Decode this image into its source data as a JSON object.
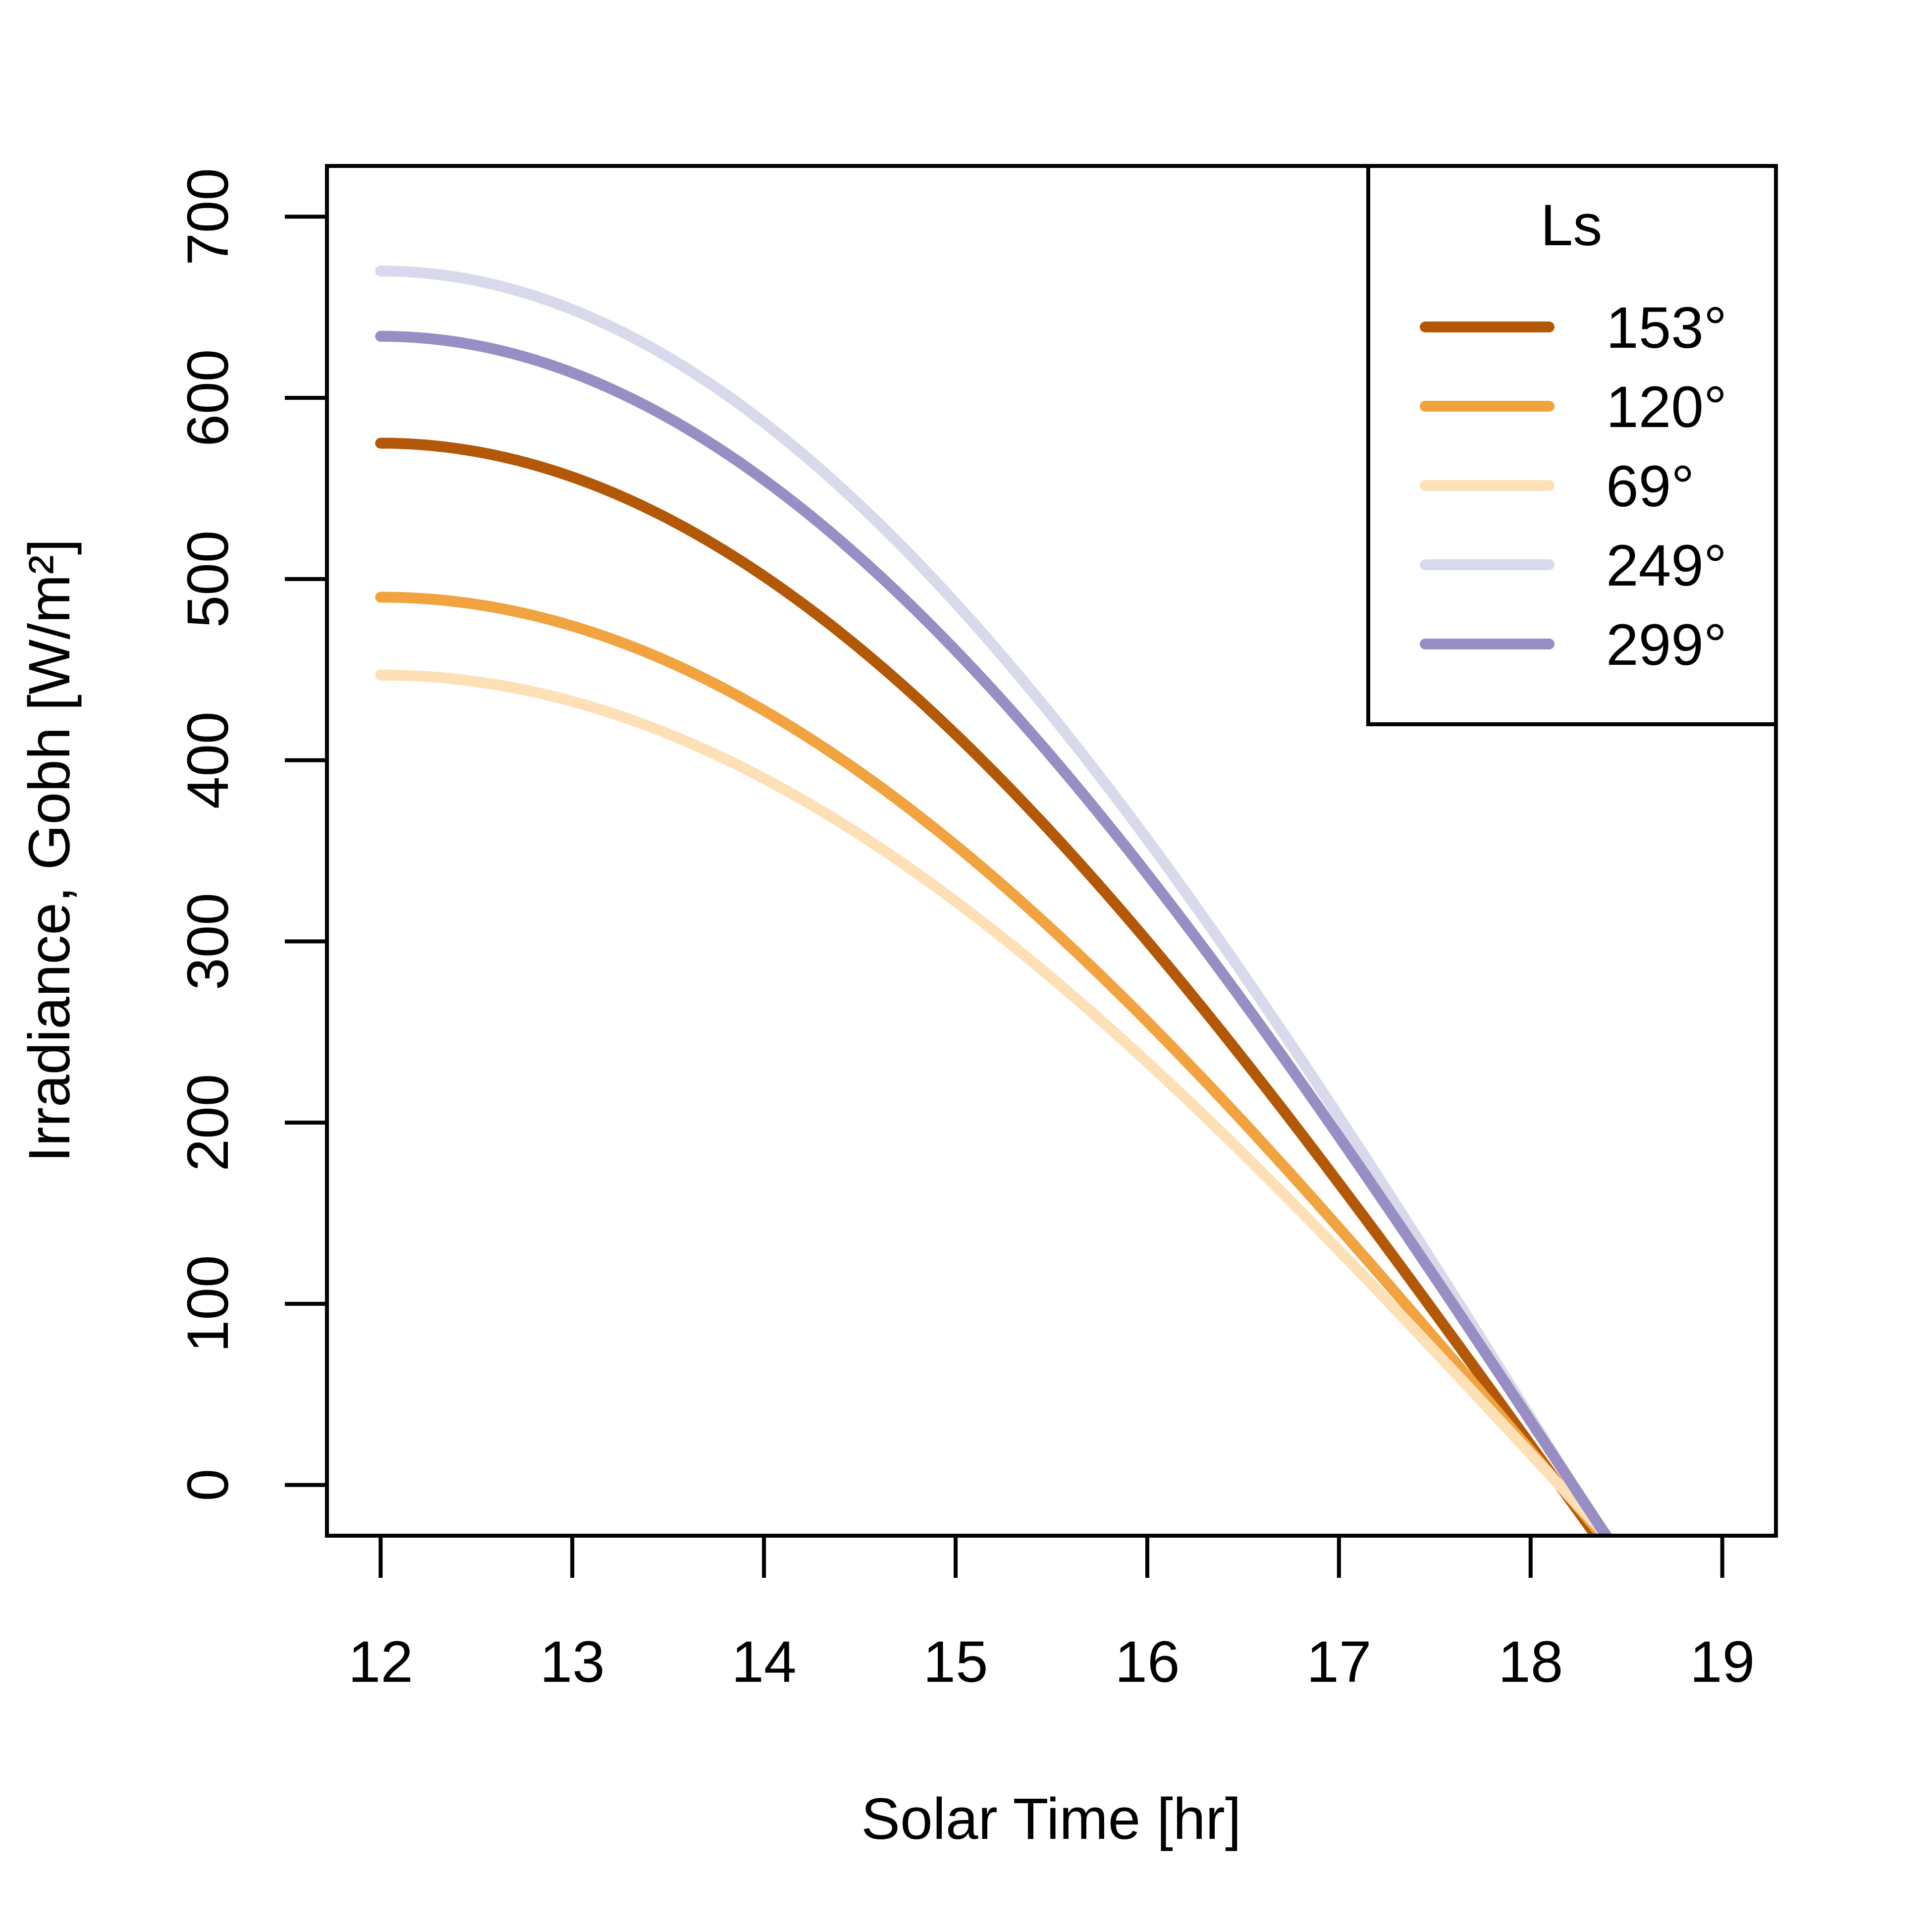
{
  "chart_data": {
    "type": "line",
    "title": "",
    "xlabel": "Solar Time [hr]",
    "ylabel": "Irradiance, Gobh [W/m²]",
    "xlim": [
      11.72,
      19.28
    ],
    "ylim": [
      -28,
      728
    ],
    "x_ticks": [
      "12",
      "13",
      "14",
      "15",
      "16",
      "17",
      "18",
      "19"
    ],
    "y_ticks": [
      "0",
      "100",
      "200",
      "300",
      "400",
      "500",
      "600",
      "700"
    ],
    "grid": false,
    "legend": {
      "title": "Ls",
      "position": "top-right"
    },
    "series": [
      {
        "name": "153°",
        "color": "#b35806",
        "peak": 575,
        "t_zero": 18.15,
        "x": [
          12,
          13,
          14,
          15,
          16,
          17,
          18
        ],
        "y": [
          575,
          556,
          502,
          408,
          286,
          149,
          20
        ]
      },
      {
        "name": "120°",
        "color": "#f1a340",
        "peak": 490,
        "t_zero": 18.15,
        "x": [
          12,
          13,
          14,
          15,
          16,
          17,
          18
        ],
        "y": [
          490,
          473,
          423,
          345,
          241,
          125,
          17
        ]
      },
      {
        "name": "69°",
        "color": "#fee0b6",
        "peak": 447,
        "t_zero": 18.15,
        "x": [
          12,
          13,
          14,
          15,
          16,
          17,
          18
        ],
        "y": [
          447,
          429,
          384,
          312,
          218,
          112,
          15
        ]
      },
      {
        "name": "249°",
        "color": "#d8daeb",
        "peak": 670,
        "t_zero": 18.22,
        "x": [
          12,
          13,
          14,
          15,
          16,
          17,
          18
        ],
        "y": [
          670,
          648,
          586,
          480,
          342,
          183,
          34
        ]
      },
      {
        "name": "299°",
        "color": "#998ec3",
        "peak": 634,
        "t_zero": 18.22,
        "x": [
          12,
          13,
          14,
          15,
          16,
          17,
          18
        ],
        "y": [
          634,
          613,
          552,
          452,
          322,
          172,
          32
        ]
      }
    ]
  }
}
